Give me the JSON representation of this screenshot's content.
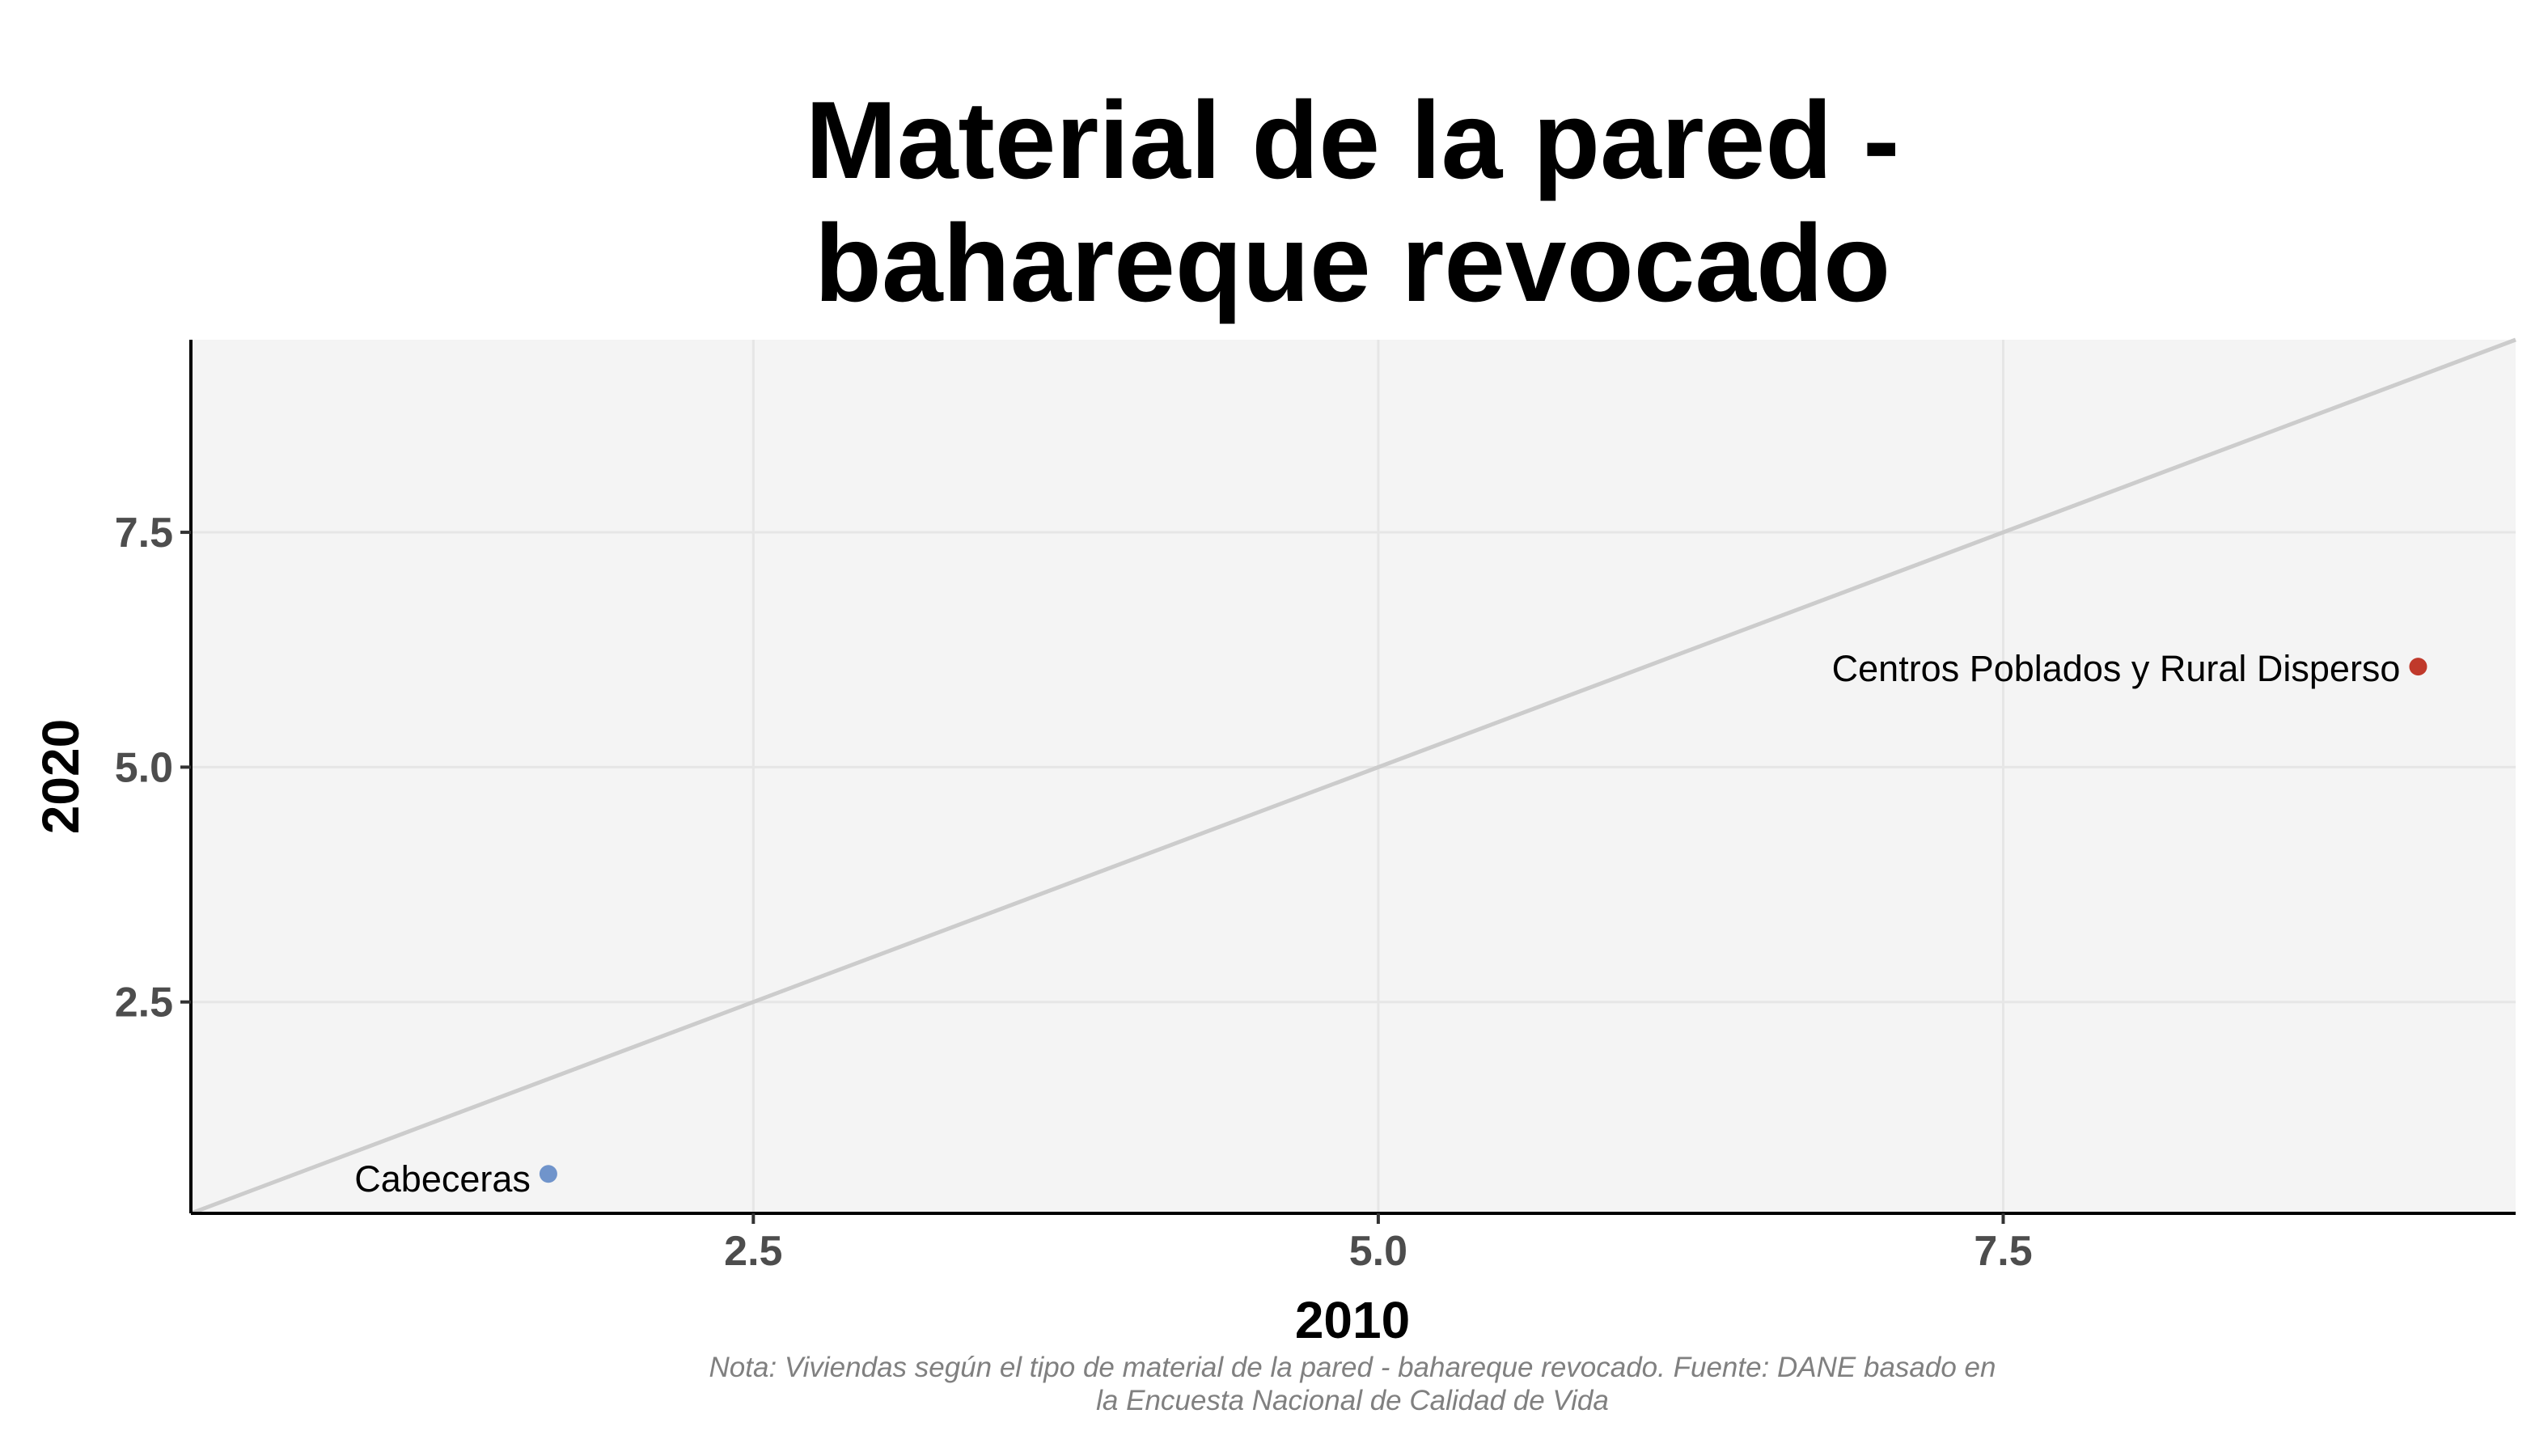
{
  "chart_data": {
    "type": "scatter",
    "title_lines": [
      "Material de la pared -",
      "bahareque revocado"
    ],
    "xlabel": "2010",
    "ylabel": "2020",
    "xlim": [
      0.25,
      9.55
    ],
    "ylim": [
      0.25,
      9.55
    ],
    "x_ticks": [
      "2.5",
      "5.0",
      "7.5"
    ],
    "y_ticks": [
      "2.5",
      "5.0",
      "7.5"
    ],
    "grid": true,
    "reference_line": "y = x",
    "points": [
      {
        "label": "Cabeceras",
        "x": 1.68,
        "y": 0.67,
        "color": "#7094cb"
      },
      {
        "label": "Centros Poblados y Rural Disperso",
        "x": 9.16,
        "y": 6.07,
        "color": "#c0392b"
      }
    ],
    "caption_lines": [
      "Nota: Viviendas según el tipo de material de la pared - bahareque revocado. Fuente: DANE basado en",
      "la Encuesta Nacional de Calidad de Vida"
    ],
    "colors": {
      "panel_background": "#f4f4f4",
      "gridline": "#e6e6e6",
      "reference_line": "#cccccc",
      "axis_line": "#000000"
    }
  }
}
